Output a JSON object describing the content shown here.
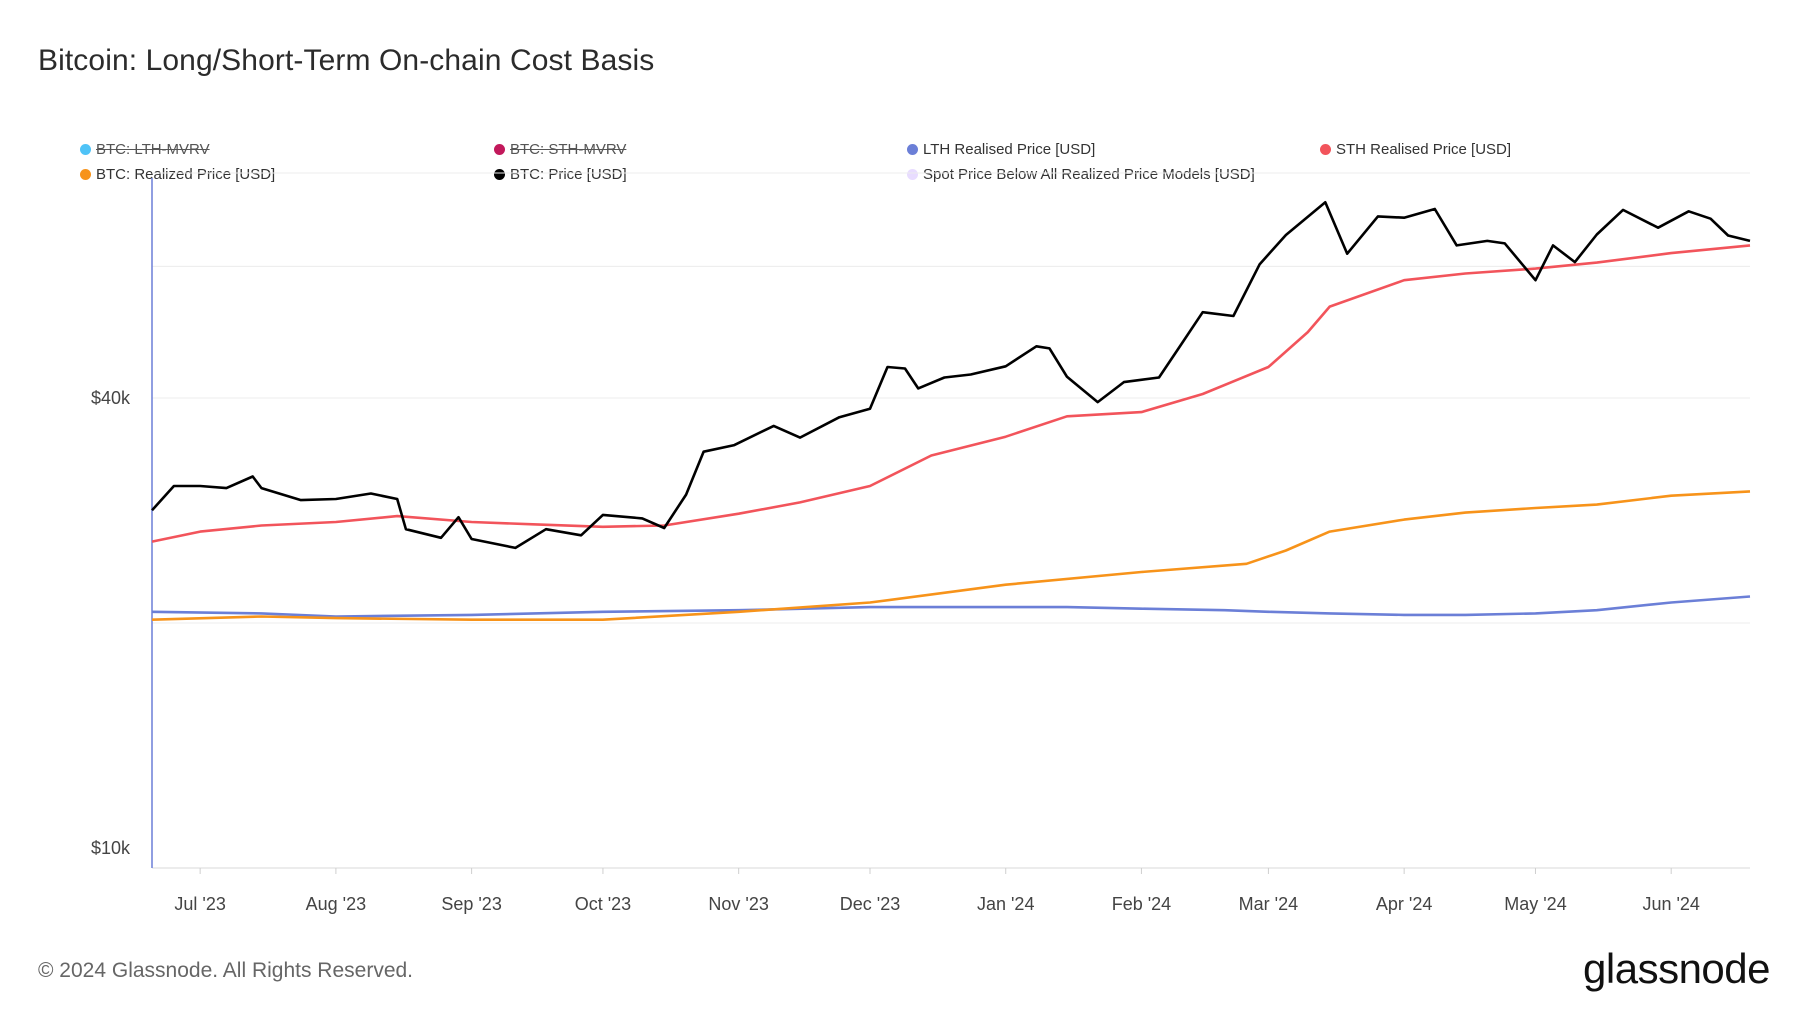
{
  "title": "Bitcoin: Long/Short-Term On-chain Cost Basis",
  "footer": {
    "copyright": "© 2024 Glassnode. All Rights Reserved.",
    "logo": "glassnode"
  },
  "legend": [
    {
      "label": "BTC: LTH-MVRV",
      "color": "#4fc3f7",
      "disabled": true
    },
    {
      "label": "BTC: STH-MVRV",
      "color": "#c2185b",
      "disabled": true
    },
    {
      "label": "LTH Realised Price [USD]",
      "color": "#6b7fd7",
      "disabled": false
    },
    {
      "label": "STH Realised Price [USD]",
      "color": "#f2545b",
      "disabled": false
    },
    {
      "label": "BTC: Realized Price [USD]",
      "color": "#f7931a",
      "disabled": false
    },
    {
      "label": "BTC: Price [USD]",
      "color": "#000000",
      "disabled": false
    },
    {
      "label": "Spot Price Below All Realized Price Models [USD]",
      "color": "#e8dcff",
      "disabled": false
    }
  ],
  "chart_data": {
    "type": "line",
    "y_scale": "log",
    "y_ticks": [
      {
        "value": 10000,
        "label": "$10k"
      },
      {
        "value": 40000,
        "label": "$40k"
      }
    ],
    "x_ticks": [
      "Jul '23",
      "Aug '23",
      "Sep '23",
      "Oct '23",
      "Nov '23",
      "Dec '23",
      "Jan '24",
      "Feb '24",
      "Mar '24",
      "Apr '24",
      "May '24",
      "Jun '24"
    ],
    "x_tick_dates": [
      "2023-07-01",
      "2023-08-01",
      "2023-09-01",
      "2023-10-01",
      "2023-11-01",
      "2023-12-01",
      "2024-01-01",
      "2024-02-01",
      "2024-03-01",
      "2024-04-01",
      "2024-05-01",
      "2024-06-01"
    ],
    "x_range": [
      "2023-06-20",
      "2024-06-19"
    ],
    "series": [
      {
        "name": "BTC: Price [USD]",
        "color": "#000000",
        "points": [
          [
            "2023-06-20",
            28300
          ],
          [
            "2023-06-25",
            30500
          ],
          [
            "2023-07-01",
            30500
          ],
          [
            "2023-07-07",
            30300
          ],
          [
            "2023-07-13",
            31400
          ],
          [
            "2023-07-15",
            30300
          ],
          [
            "2023-07-24",
            29200
          ],
          [
            "2023-08-01",
            29300
          ],
          [
            "2023-08-09",
            29800
          ],
          [
            "2023-08-15",
            29300
          ],
          [
            "2023-08-17",
            26700
          ],
          [
            "2023-08-25",
            26000
          ],
          [
            "2023-08-29",
            27700
          ],
          [
            "2023-09-01",
            25900
          ],
          [
            "2023-09-11",
            25200
          ],
          [
            "2023-09-18",
            26700
          ],
          [
            "2023-09-26",
            26200
          ],
          [
            "2023-10-01",
            27900
          ],
          [
            "2023-10-10",
            27600
          ],
          [
            "2023-10-15",
            26800
          ],
          [
            "2023-10-20",
            29700
          ],
          [
            "2023-10-24",
            33900
          ],
          [
            "2023-10-31",
            34600
          ],
          [
            "2023-11-09",
            36700
          ],
          [
            "2023-11-15",
            35400
          ],
          [
            "2023-11-24",
            37700
          ],
          [
            "2023-12-01",
            38700
          ],
          [
            "2023-12-05",
            44000
          ],
          [
            "2023-12-09",
            43800
          ],
          [
            "2023-12-12",
            41200
          ],
          [
            "2023-12-18",
            42600
          ],
          [
            "2023-12-24",
            43000
          ],
          [
            "2024-01-01",
            44100
          ],
          [
            "2024-01-08",
            46900
          ],
          [
            "2024-01-11",
            46600
          ],
          [
            "2024-01-15",
            42700
          ],
          [
            "2024-01-22",
            39500
          ],
          [
            "2024-01-28",
            42000
          ],
          [
            "2024-02-05",
            42600
          ],
          [
            "2024-02-10",
            47100
          ],
          [
            "2024-02-15",
            52100
          ],
          [
            "2024-02-22",
            51500
          ],
          [
            "2024-02-28",
            60400
          ],
          [
            "2024-03-05",
            66100
          ],
          [
            "2024-03-14",
            73100
          ],
          [
            "2024-03-19",
            62400
          ],
          [
            "2024-03-26",
            70000
          ],
          [
            "2024-04-01",
            69700
          ],
          [
            "2024-04-08",
            71600
          ],
          [
            "2024-04-13",
            64000
          ],
          [
            "2024-04-20",
            64900
          ],
          [
            "2024-04-24",
            64400
          ],
          [
            "2024-05-01",
            57500
          ],
          [
            "2024-05-05",
            64000
          ],
          [
            "2024-05-10",
            60800
          ],
          [
            "2024-05-15",
            66200
          ],
          [
            "2024-05-21",
            71400
          ],
          [
            "2024-05-29",
            67600
          ],
          [
            "2024-06-05",
            71100
          ],
          [
            "2024-06-10",
            69500
          ],
          [
            "2024-06-14",
            66000
          ],
          [
            "2024-06-19",
            64900
          ]
        ]
      },
      {
        "name": "STH Realised Price [USD]",
        "color": "#f2545b",
        "points": [
          [
            "2023-06-20",
            25700
          ],
          [
            "2023-07-01",
            26500
          ],
          [
            "2023-07-15",
            27000
          ],
          [
            "2023-08-01",
            27300
          ],
          [
            "2023-08-15",
            27800
          ],
          [
            "2023-09-01",
            27300
          ],
          [
            "2023-09-15",
            27100
          ],
          [
            "2023-10-01",
            26900
          ],
          [
            "2023-10-15",
            27000
          ],
          [
            "2023-11-01",
            28000
          ],
          [
            "2023-11-15",
            29000
          ],
          [
            "2023-12-01",
            30500
          ],
          [
            "2023-12-15",
            33500
          ],
          [
            "2024-01-01",
            35500
          ],
          [
            "2024-01-15",
            37800
          ],
          [
            "2024-02-01",
            38300
          ],
          [
            "2024-02-15",
            40500
          ],
          [
            "2024-03-01",
            44000
          ],
          [
            "2024-03-10",
            49000
          ],
          [
            "2024-03-15",
            53000
          ],
          [
            "2024-04-01",
            57500
          ],
          [
            "2024-04-15",
            58700
          ],
          [
            "2024-05-01",
            59600
          ],
          [
            "2024-05-15",
            60700
          ],
          [
            "2024-06-01",
            62500
          ],
          [
            "2024-06-19",
            64000
          ]
        ]
      },
      {
        "name": "BTC: Realized Price [USD]",
        "color": "#f7931a",
        "points": [
          [
            "2023-06-20",
            20200
          ],
          [
            "2023-07-15",
            20400
          ],
          [
            "2023-08-01",
            20300
          ],
          [
            "2023-09-01",
            20200
          ],
          [
            "2023-10-01",
            20200
          ],
          [
            "2023-11-01",
            20700
          ],
          [
            "2023-12-01",
            21300
          ],
          [
            "2024-01-01",
            22500
          ],
          [
            "2024-02-01",
            23400
          ],
          [
            "2024-02-25",
            24000
          ],
          [
            "2024-03-05",
            25000
          ],
          [
            "2024-03-15",
            26500
          ],
          [
            "2024-04-01",
            27500
          ],
          [
            "2024-04-15",
            28100
          ],
          [
            "2024-05-01",
            28500
          ],
          [
            "2024-05-15",
            28800
          ],
          [
            "2024-06-01",
            29600
          ],
          [
            "2024-06-19",
            30000
          ]
        ]
      },
      {
        "name": "LTH Realised Price [USD]",
        "color": "#6b7fd7",
        "points": [
          [
            "2023-06-20",
            20700
          ],
          [
            "2023-07-15",
            20600
          ],
          [
            "2023-08-01",
            20400
          ],
          [
            "2023-09-01",
            20500
          ],
          [
            "2023-10-01",
            20700
          ],
          [
            "2023-11-01",
            20800
          ],
          [
            "2023-12-01",
            21000
          ],
          [
            "2024-01-01",
            21000
          ],
          [
            "2024-01-15",
            21000
          ],
          [
            "2024-02-01",
            20900
          ],
          [
            "2024-02-20",
            20800
          ],
          [
            "2024-03-01",
            20700
          ],
          [
            "2024-03-15",
            20600
          ],
          [
            "2024-04-01",
            20500
          ],
          [
            "2024-04-15",
            20500
          ],
          [
            "2024-05-01",
            20600
          ],
          [
            "2024-05-15",
            20800
          ],
          [
            "2024-06-01",
            21300
          ],
          [
            "2024-06-19",
            21700
          ]
        ]
      }
    ]
  }
}
